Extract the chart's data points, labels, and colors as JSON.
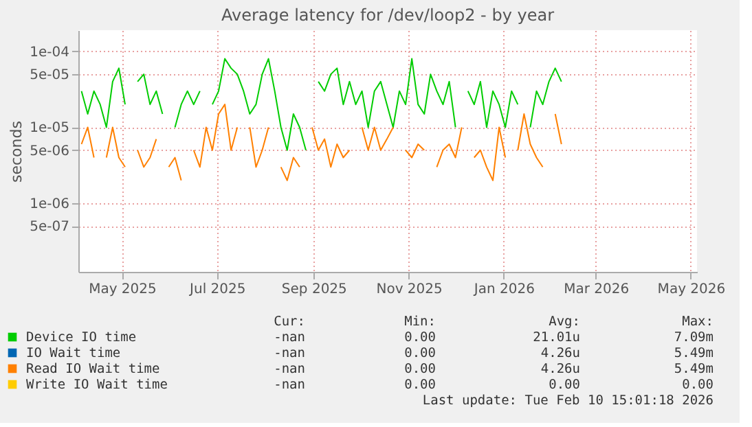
{
  "chart_data": {
    "type": "line",
    "title": "Average latency for /dev/loop2 - by year",
    "ylabel": "seconds",
    "x": [
      "2025-04-05",
      "2025-04-09",
      "2025-04-13",
      "2025-04-17",
      "2025-04-21",
      "2025-04-25",
      "2025-04-29",
      "2025-05-03",
      "2025-05-07",
      "2025-05-11",
      "2025-05-15",
      "2025-05-19",
      "2025-05-23",
      "2025-05-27",
      "2025-05-31",
      "2025-06-04",
      "2025-06-08",
      "2025-06-12",
      "2025-06-16",
      "2025-06-20",
      "2025-06-24",
      "2025-06-28",
      "2025-07-02",
      "2025-07-06",
      "2025-07-10",
      "2025-07-14",
      "2025-07-18",
      "2025-07-22",
      "2025-07-26",
      "2025-07-30",
      "2025-08-03",
      "2025-08-07",
      "2025-08-11",
      "2025-08-15",
      "2025-08-19",
      "2025-08-23",
      "2025-08-27",
      "2025-08-31",
      "2025-09-04",
      "2025-09-08",
      "2025-09-12",
      "2025-09-16",
      "2025-09-20",
      "2025-09-24",
      "2025-09-28",
      "2025-10-02",
      "2025-10-06",
      "2025-10-10",
      "2025-10-14",
      "2025-10-18",
      "2025-10-22",
      "2025-10-26",
      "2025-10-30",
      "2025-11-03",
      "2025-11-07",
      "2025-11-11",
      "2025-11-15",
      "2025-11-19",
      "2025-11-23",
      "2025-11-27",
      "2025-12-01",
      "2025-12-05",
      "2025-12-09",
      "2025-12-13",
      "2025-12-17",
      "2025-12-21",
      "2025-12-25",
      "2025-12-29",
      "2026-01-02",
      "2026-01-06",
      "2026-01-10",
      "2026-01-14",
      "2026-01-18",
      "2026-01-22",
      "2026-01-26",
      "2026-01-30",
      "2026-02-03",
      "2026-02-07"
    ],
    "series": [
      {
        "name": "Device IO time",
        "color": "#00cc00",
        "values": [
          3e-05,
          1.5e-05,
          3e-05,
          2e-05,
          1e-05,
          4e-05,
          6e-05,
          2e-05,
          null,
          4e-05,
          5e-05,
          2e-05,
          3e-05,
          1.5e-05,
          null,
          1e-05,
          2e-05,
          3e-05,
          2e-05,
          3e-05,
          null,
          2e-05,
          3e-05,
          8e-05,
          6e-05,
          5e-05,
          3e-05,
          1.5e-05,
          2e-05,
          5e-05,
          8e-05,
          3e-05,
          1e-05,
          5e-06,
          1.5e-05,
          1e-05,
          5e-06,
          null,
          4e-05,
          3e-05,
          5e-05,
          6e-05,
          2e-05,
          4e-05,
          2e-05,
          3e-05,
          1e-05,
          3e-05,
          4e-05,
          2e-05,
          1e-05,
          3e-05,
          2e-05,
          8e-05,
          2e-05,
          1.5e-05,
          5e-05,
          3e-05,
          2e-05,
          4e-05,
          1e-05,
          null,
          3e-05,
          2e-05,
          4e-05,
          1e-05,
          3e-05,
          2e-05,
          1e-05,
          3e-05,
          2e-05,
          null,
          1e-05,
          3e-05,
          2e-05,
          4e-05,
          6e-05,
          4e-05
        ]
      },
      {
        "name": "IO Wait time",
        "color": "#0066b3",
        "values": [
          null,
          null,
          null,
          null,
          null,
          null,
          null,
          null,
          null,
          null,
          null,
          null,
          null,
          null,
          null,
          null,
          null,
          null,
          null,
          null,
          null,
          null,
          null,
          null,
          null,
          null,
          null,
          null,
          null,
          null,
          null,
          null,
          null,
          null,
          null,
          null,
          null,
          null,
          null,
          null,
          null,
          null,
          null,
          null,
          null,
          null,
          null,
          null,
          null,
          null,
          null,
          null,
          null,
          null,
          null,
          null,
          null,
          null,
          null,
          null,
          null,
          null,
          null,
          null,
          null,
          null,
          null,
          null,
          null,
          null,
          null,
          null,
          null,
          null,
          null,
          null,
          null,
          null
        ]
      },
      {
        "name": "Read IO Wait time",
        "color": "#ff8000",
        "values": [
          6e-06,
          1e-05,
          4e-06,
          null,
          4e-06,
          1e-05,
          4e-06,
          3e-06,
          null,
          5e-06,
          3e-06,
          4e-06,
          7e-06,
          null,
          3e-06,
          4e-06,
          2e-06,
          null,
          5e-06,
          3e-06,
          1e-05,
          5e-06,
          1.5e-05,
          2e-05,
          5e-06,
          1e-05,
          null,
          1e-05,
          3e-06,
          5e-06,
          1e-05,
          null,
          3e-06,
          2e-06,
          4e-06,
          3e-06,
          null,
          1e-05,
          5e-06,
          7e-06,
          3e-06,
          6e-06,
          4e-06,
          5e-06,
          null,
          1e-05,
          5e-06,
          1e-05,
          5e-06,
          7e-06,
          1e-05,
          null,
          5e-06,
          4e-06,
          6e-06,
          5e-06,
          null,
          3e-06,
          5e-06,
          6e-06,
          4e-06,
          1e-05,
          null,
          4e-06,
          5e-06,
          3e-06,
          2e-06,
          1e-05,
          4e-06,
          null,
          5e-06,
          1.5e-05,
          6e-06,
          4e-06,
          3e-06,
          null,
          1.5e-05,
          6e-06
        ]
      },
      {
        "name": "Write IO Wait time",
        "color": "#ffcc00",
        "values": [
          null,
          null,
          null,
          null,
          null,
          null,
          null,
          null,
          null,
          null,
          null,
          null,
          null,
          null,
          null,
          null,
          null,
          null,
          null,
          null,
          null,
          null,
          null,
          null,
          null,
          null,
          null,
          null,
          null,
          null,
          null,
          null,
          null,
          null,
          null,
          null,
          null,
          null,
          null,
          null,
          null,
          null,
          null,
          null,
          null,
          null,
          null,
          null,
          null,
          null,
          null,
          null,
          null,
          null,
          null,
          null,
          null,
          null,
          null,
          null,
          null,
          null,
          null,
          null,
          null,
          null,
          null,
          null,
          null,
          null,
          null,
          null,
          null,
          null,
          null,
          null,
          null,
          null
        ]
      }
    ],
    "log": "y",
    "ylim": [
      1.25e-07,
      0.00019
    ],
    "yticks": [
      {
        "value": 5e-07,
        "label": "5e-07"
      },
      {
        "value": 1e-06,
        "label": "1e-06"
      },
      {
        "value": 5e-06,
        "label": "5e-06"
      },
      {
        "value": 1e-05,
        "label": "1e-05"
      },
      {
        "value": 5e-05,
        "label": "5e-05"
      },
      {
        "value": 0.0001,
        "label": "1e-04"
      }
    ],
    "xlim": [
      "2025-04-03",
      "2026-05-05"
    ],
    "xticks": [
      {
        "value": "2025-05-01",
        "label": "May 2025"
      },
      {
        "value": "2025-07-01",
        "label": "Jul 2025"
      },
      {
        "value": "2025-09-01",
        "label": "Sep 2025"
      },
      {
        "value": "2025-11-01",
        "label": "Nov 2025"
      },
      {
        "value": "2026-01-01",
        "label": "Jan 2026"
      },
      {
        "value": "2026-03-01",
        "label": "Mar 2026"
      },
      {
        "value": "2026-05-01",
        "label": "May 2026"
      }
    ],
    "grid": true,
    "legend": "bottom",
    "annotations": [
      "Cur:",
      "Min:",
      "Avg:",
      "Max:",
      "-nan",
      "0.00",
      "21.01u",
      "7.09m",
      "-nan",
      "0.00",
      "4.26u",
      "5.49m",
      "-nan",
      "0.00",
      "4.26u",
      "5.49m",
      "-nan",
      "0.00",
      "0.00",
      "0.00",
      "Last update: Tue Feb 10 15:01:18 2026"
    ]
  }
}
